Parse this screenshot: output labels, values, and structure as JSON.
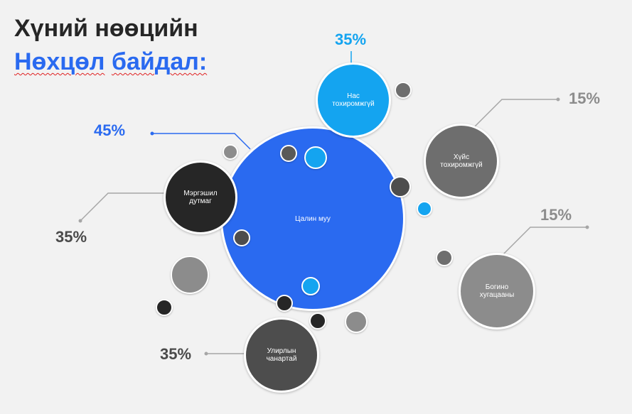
{
  "title": {
    "line1": "Хүний нөөцийн",
    "line2_word1": "Нөхцөл",
    "line2_word2": "байдал:"
  },
  "colors": {
    "blue": "#2a6af0",
    "cyan": "#14a4f0",
    "dark": "#262626",
    "darkgray": "#595959",
    "gray": "#6e6e6e",
    "lightgray": "#8c8c8c"
  },
  "center": {
    "label": "Цалин муу",
    "percent": "45%"
  },
  "factors": [
    {
      "label": "Нас\nтохиромжгүй",
      "percent": "35%"
    },
    {
      "label": "Хүйс\nтохиромжгүй",
      "percent": "15%"
    },
    {
      "label": "Богино\nхугацааны",
      "percent": "15%"
    },
    {
      "label": "Улирлын\nчанартай",
      "percent": "35%"
    },
    {
      "label": "Мэргэшил\nдутмаг",
      "percent": "35%"
    }
  ]
}
